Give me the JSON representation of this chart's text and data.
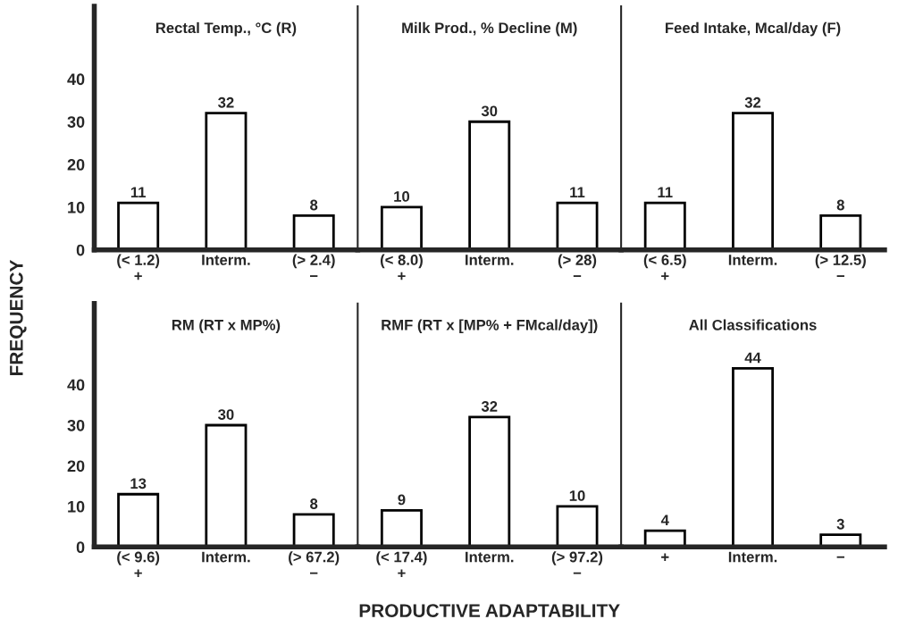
{
  "chart_data": [
    {
      "type": "bar",
      "title": "Rectal Temp., °C (R)",
      "ylabel": "FREQUENCY",
      "categories": [
        "(< 1.2)\n+",
        "Interm.",
        "(> 2.4)\n−"
      ],
      "values": [
        11,
        32,
        8
      ],
      "color": "#ffffff",
      "ylim": [
        0,
        57
      ],
      "yticks": [
        0,
        10,
        20,
        30,
        40
      ],
      "data_labels": true,
      "grid": false
    },
    {
      "type": "bar",
      "title": "Milk Prod., % Decline (M)",
      "categories": [
        "(< 8.0)\n+",
        "Interm.",
        "(> 28)\n−"
      ],
      "values": [
        10,
        30,
        11
      ],
      "color": "#ffffff",
      "ylim": [
        0,
        57
      ],
      "data_labels": true,
      "tick_labels": "x",
      "grid": false
    },
    {
      "type": "bar",
      "title": "Feed Intake, Mcal/day (F)",
      "categories": [
        "(< 6.5)\n+",
        "Interm.",
        "(> 12.5)\n−"
      ],
      "values": [
        11,
        32,
        8
      ],
      "color": "#ffffff",
      "ylim": [
        0,
        57
      ],
      "data_labels": true,
      "tick_labels": "x",
      "grid": false
    },
    {
      "type": "bar",
      "title": "RM (RT x MP%)",
      "categories": [
        "(< 9.6)\n+",
        "Interm.",
        "(> 67.2)\n−"
      ],
      "values": [
        13,
        30,
        8
      ],
      "color": "#ffffff",
      "ylim": [
        0,
        60
      ],
      "yticks": [
        0,
        10,
        20,
        30,
        40
      ],
      "data_labels": true,
      "grid": false
    },
    {
      "type": "bar",
      "title": "RMF (RT x [MP% + FMcal/day])",
      "xlabel": "PRODUCTIVE ADAPTABILITY",
      "categories": [
        "(< 17.4)\n+",
        "Interm.",
        "(> 97.2)\n−"
      ],
      "values": [
        9,
        32,
        10
      ],
      "color": "#ffffff",
      "ylim": [
        0,
        60
      ],
      "data_labels": true,
      "tick_labels": "x",
      "grid": false
    },
    {
      "type": "bar",
      "title": "All Classifications",
      "categories": [
        "+",
        "Interm.",
        "−"
      ],
      "values": [
        4,
        44,
        3
      ],
      "color": "#ffffff",
      "ylim": [
        0,
        60
      ],
      "data_labels": true,
      "tick_labels": "x",
      "grid": false
    }
  ]
}
